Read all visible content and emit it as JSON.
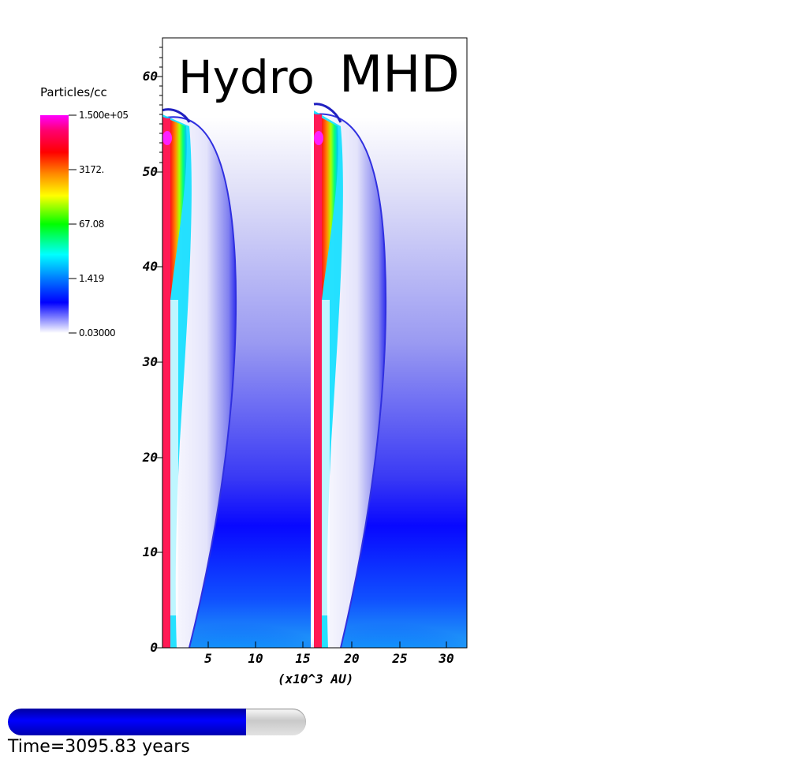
{
  "colorbar": {
    "title": "Particles/cc",
    "ticks": [
      "1.500e+05",
      "3172.",
      "67.08",
      "1.419",
      "0.03000"
    ],
    "colors": [
      "#ff00ff",
      "#ff0066",
      "#ff0000",
      "#ff8800",
      "#ffff00",
      "#00ff00",
      "#00ffff",
      "#0088ff",
      "#0000ff",
      "#ffffff"
    ]
  },
  "panels": {
    "left": "Hydro",
    "right": "MHD"
  },
  "axes": {
    "x_label": "(x10^3 AU)",
    "x_ticks": [
      "5",
      "10",
      "15",
      "20",
      "25",
      "30"
    ],
    "y_ticks": [
      "0",
      "10",
      "20",
      "30",
      "40",
      "50",
      "60"
    ]
  },
  "progress": {
    "fraction": 0.8
  },
  "time_label": "Time=3095.83 years"
}
